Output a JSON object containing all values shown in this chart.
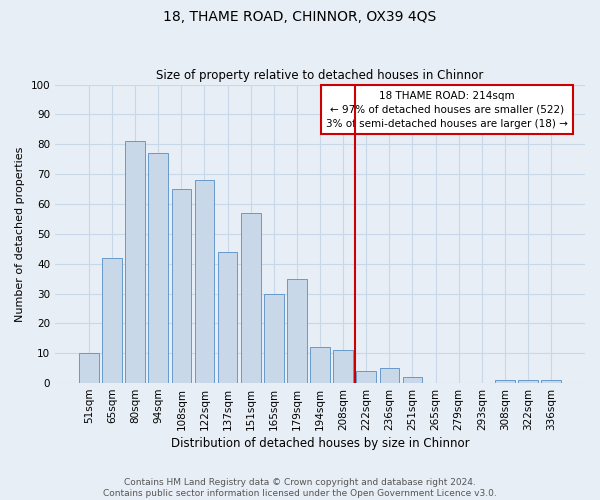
{
  "title": "18, THAME ROAD, CHINNOR, OX39 4QS",
  "subtitle": "Size of property relative to detached houses in Chinnor",
  "xlabel": "Distribution of detached houses by size in Chinnor",
  "ylabel": "Number of detached properties",
  "footnote1": "Contains HM Land Registry data © Crown copyright and database right 2024.",
  "footnote2": "Contains public sector information licensed under the Open Government Licence v3.0.",
  "categories": [
    "51sqm",
    "65sqm",
    "80sqm",
    "94sqm",
    "108sqm",
    "122sqm",
    "137sqm",
    "151sqm",
    "165sqm",
    "179sqm",
    "194sqm",
    "208sqm",
    "222sqm",
    "236sqm",
    "251sqm",
    "265sqm",
    "279sqm",
    "293sqm",
    "308sqm",
    "322sqm",
    "336sqm"
  ],
  "values": [
    10,
    42,
    81,
    77,
    65,
    68,
    44,
    57,
    30,
    35,
    12,
    11,
    4,
    5,
    2,
    0,
    0,
    0,
    1,
    1,
    1
  ],
  "bar_color": "#c8d8e8",
  "bar_edge_color": "#6699cc",
  "vline_x_index": 11.5,
  "vline_color": "#cc0000",
  "annotation_text": "18 THAME ROAD: 214sqm\n← 97% of detached houses are smaller (522)\n3% of semi-detached houses are larger (18) →",
  "annotation_box_color": "#cc0000",
  "ylim": [
    0,
    100
  ],
  "yticks": [
    0,
    10,
    20,
    30,
    40,
    50,
    60,
    70,
    80,
    90,
    100
  ],
  "grid_color": "#c8d8e8",
  "background_color": "#e8eef5",
  "plot_bg_color": "#e8eef5",
  "title_fontsize": 10,
  "subtitle_fontsize": 8.5,
  "ylabel_fontsize": 8,
  "xlabel_fontsize": 8.5,
  "tick_fontsize": 7.5,
  "footnote_fontsize": 6.5,
  "annotation_fontsize": 7.5
}
